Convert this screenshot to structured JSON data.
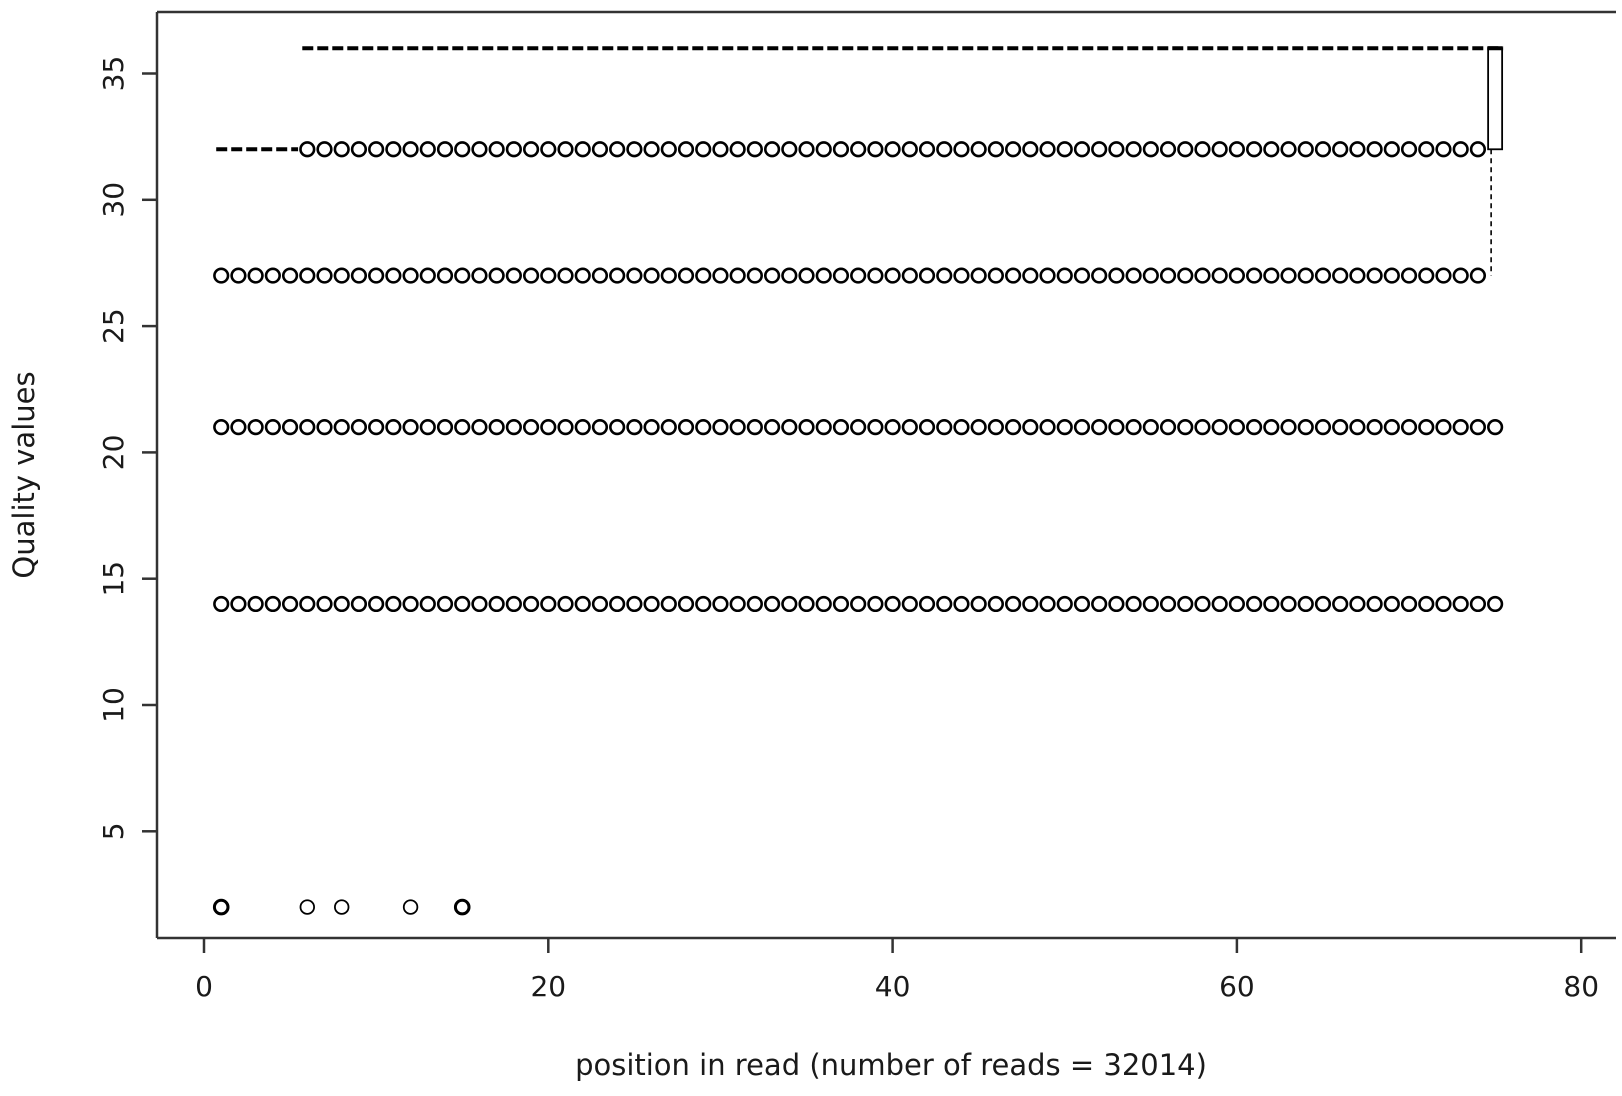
{
  "chart_data": {
    "type": "scatter",
    "subtype": "boxplot-per-position",
    "title": "",
    "xlabel": "position in read (number of reads = 32014)",
    "ylabel": "Quality values",
    "xlim": [
      0,
      80
    ],
    "ylim": [
      2,
      36
    ],
    "x_ticks": [
      0,
      20,
      40,
      60,
      80
    ],
    "y_ticks": [
      5,
      10,
      15,
      20,
      25,
      30,
      35
    ],
    "grid": false,
    "legend": "none",
    "colors": {
      "marks": "#000000",
      "axis": "#333333",
      "background": "#ffffff"
    },
    "positions": {
      "start": 1,
      "end": 75
    },
    "series": [
      {
        "type": "outlier-band",
        "y": 27,
        "x_from": 1,
        "x_to": 74
      },
      {
        "type": "outlier-band",
        "y": 21,
        "x_from": 1,
        "x_to": 75
      },
      {
        "type": "outlier-band",
        "y": 14,
        "x_from": 1,
        "x_to": 75
      },
      {
        "type": "outlier-band",
        "y": 32,
        "x_from": 6,
        "x_to": 74
      },
      {
        "type": "outlier-points",
        "y": 2,
        "x": [
          1,
          6,
          8,
          12,
          15
        ]
      },
      {
        "type": "median-line",
        "y": 36,
        "x_from": 6,
        "x_to": 75
      },
      {
        "type": "median-line",
        "y": 32,
        "x_from": 1,
        "x_to": 5
      },
      {
        "type": "box",
        "x": 75,
        "q1": 32,
        "median": 36,
        "q3": 36,
        "whisker_low": 27,
        "whisker_high": 36
      }
    ]
  }
}
